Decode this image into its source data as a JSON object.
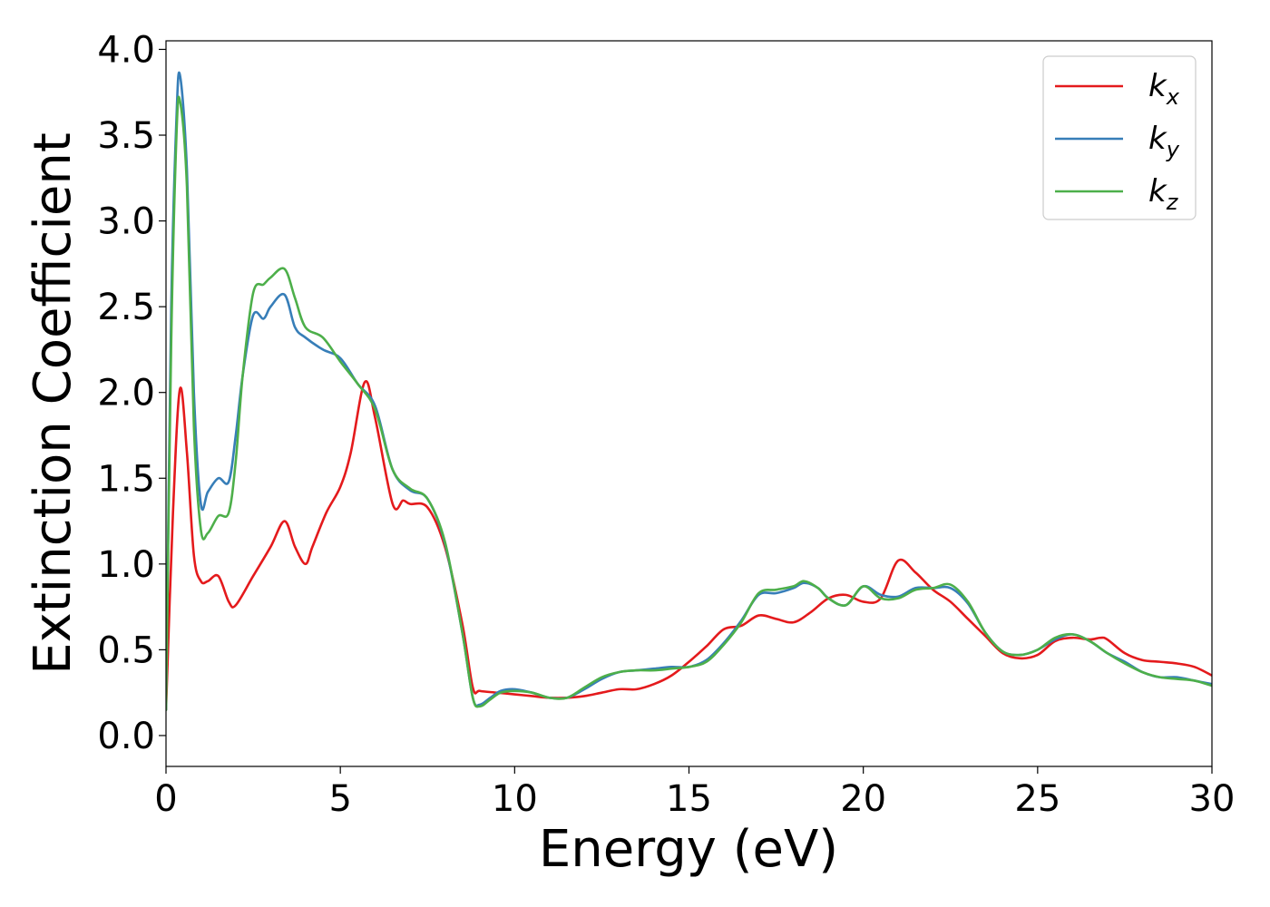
{
  "chart_data": {
    "type": "line",
    "xlabel": "Energy (eV)",
    "ylabel": "Extinction Coefficient",
    "xlim": [
      0,
      30
    ],
    "ylim": [
      -0.18,
      4.05
    ],
    "xticks": [
      0,
      5,
      10,
      15,
      20,
      25,
      30
    ],
    "xtick_labels": [
      "0",
      "5",
      "10",
      "15",
      "20",
      "25",
      "30"
    ],
    "yticks": [
      0.0,
      0.5,
      1.0,
      1.5,
      2.0,
      2.5,
      3.0,
      3.5,
      4.0
    ],
    "ytick_labels": [
      "0.0",
      "0.5",
      "1.0",
      "1.5",
      "2.0",
      "2.5",
      "3.0",
      "3.5",
      "4.0"
    ],
    "grid": false,
    "legend_position": "top-right",
    "series": [
      {
        "name": "k_x",
        "label_main": "k",
        "label_sub": "x",
        "color": "#e41a1c",
        "x": [
          0,
          0.2,
          0.4,
          0.6,
          0.8,
          1.0,
          1.2,
          1.5,
          1.8,
          2.0,
          2.5,
          3.0,
          3.4,
          3.7,
          4.0,
          4.2,
          4.6,
          5.0,
          5.3,
          5.7,
          6.0,
          6.5,
          6.8,
          7.0,
          7.5,
          8.0,
          8.5,
          8.8,
          9.0,
          9.5,
          10.0,
          10.5,
          11.0,
          11.5,
          12.0,
          12.5,
          13.0,
          13.5,
          14.0,
          14.5,
          15.0,
          15.5,
          16.0,
          16.5,
          17.0,
          17.5,
          18.0,
          18.5,
          19.0,
          19.5,
          20.0,
          20.5,
          21.0,
          21.5,
          22.0,
          22.5,
          23.0,
          23.5,
          24.0,
          24.5,
          25.0,
          25.5,
          26.0,
          26.5,
          26.8,
          27.0,
          27.5,
          28.0,
          28.5,
          29.0,
          29.5,
          30.0
        ],
        "y": [
          0.15,
          1.3,
          2.02,
          1.65,
          1.05,
          0.9,
          0.9,
          0.93,
          0.78,
          0.76,
          0.93,
          1.1,
          1.25,
          1.1,
          1.0,
          1.1,
          1.3,
          1.45,
          1.65,
          2.06,
          1.85,
          1.35,
          1.37,
          1.35,
          1.33,
          1.1,
          0.65,
          0.28,
          0.26,
          0.25,
          0.24,
          0.23,
          0.22,
          0.22,
          0.23,
          0.25,
          0.27,
          0.27,
          0.3,
          0.35,
          0.43,
          0.52,
          0.62,
          0.64,
          0.7,
          0.68,
          0.66,
          0.72,
          0.8,
          0.82,
          0.78,
          0.8,
          1.02,
          0.95,
          0.85,
          0.78,
          0.68,
          0.58,
          0.48,
          0.45,
          0.47,
          0.55,
          0.57,
          0.56,
          0.57,
          0.56,
          0.48,
          0.44,
          0.43,
          0.42,
          0.4,
          0.35
        ]
      },
      {
        "name": "k_y",
        "label_main": "k",
        "label_sub": "y",
        "color": "#377eb8",
        "x": [
          0,
          0.15,
          0.3,
          0.4,
          0.6,
          0.8,
          1.0,
          1.2,
          1.5,
          1.8,
          2.0,
          2.2,
          2.5,
          2.8,
          3.0,
          3.4,
          3.7,
          4.0,
          4.5,
          5.0,
          5.5,
          6.0,
          6.5,
          7.0,
          7.5,
          8.0,
          8.5,
          8.8,
          9.0,
          9.3,
          9.6,
          10.0,
          10.5,
          11.0,
          11.5,
          12.0,
          12.5,
          13.0,
          13.5,
          14.0,
          14.5,
          15.0,
          15.5,
          16.0,
          16.5,
          17.0,
          17.5,
          18.0,
          18.3,
          18.7,
          19.0,
          19.5,
          20.0,
          20.5,
          21.0,
          21.5,
          22.0,
          22.5,
          23.0,
          23.5,
          24.0,
          24.5,
          25.0,
          25.5,
          26.0,
          26.5,
          27.0,
          27.5,
          28.0,
          28.5,
          29.0,
          29.5,
          30.0
        ],
        "y": [
          0.15,
          2.5,
          3.6,
          3.85,
          3.3,
          2.0,
          1.35,
          1.42,
          1.5,
          1.48,
          1.75,
          2.1,
          2.45,
          2.43,
          2.5,
          2.57,
          2.38,
          2.32,
          2.25,
          2.2,
          2.05,
          1.92,
          1.55,
          1.43,
          1.38,
          1.12,
          0.6,
          0.22,
          0.18,
          0.22,
          0.26,
          0.27,
          0.25,
          0.22,
          0.22,
          0.27,
          0.33,
          0.37,
          0.38,
          0.39,
          0.4,
          0.4,
          0.44,
          0.54,
          0.67,
          0.82,
          0.83,
          0.86,
          0.89,
          0.86,
          0.8,
          0.76,
          0.87,
          0.82,
          0.81,
          0.86,
          0.86,
          0.86,
          0.77,
          0.6,
          0.49,
          0.47,
          0.5,
          0.56,
          0.59,
          0.55,
          0.48,
          0.43,
          0.37,
          0.34,
          0.34,
          0.32,
          0.3
        ]
      },
      {
        "name": "k_z",
        "label_main": "k",
        "label_sub": "z",
        "color": "#4daf4a",
        "x": [
          0,
          0.15,
          0.3,
          0.4,
          0.6,
          0.8,
          1.0,
          1.2,
          1.5,
          1.8,
          2.0,
          2.2,
          2.5,
          2.8,
          3.0,
          3.4,
          3.7,
          4.0,
          4.5,
          5.0,
          5.5,
          6.0,
          6.5,
          7.0,
          7.5,
          8.0,
          8.5,
          8.8,
          9.0,
          9.3,
          9.6,
          10.0,
          10.5,
          11.0,
          11.5,
          12.0,
          12.5,
          13.0,
          13.5,
          14.0,
          14.5,
          15.0,
          15.5,
          16.0,
          16.5,
          17.0,
          17.5,
          18.0,
          18.3,
          18.7,
          19.0,
          19.5,
          20.0,
          20.5,
          21.0,
          21.5,
          22.0,
          22.5,
          23.0,
          23.5,
          24.0,
          24.5,
          25.0,
          25.5,
          26.0,
          26.5,
          27.0,
          27.5,
          28.0,
          28.5,
          29.0,
          29.5,
          30.0
        ],
        "y": [
          0.15,
          2.3,
          3.5,
          3.7,
          3.2,
          1.8,
          1.2,
          1.18,
          1.28,
          1.3,
          1.6,
          2.1,
          2.58,
          2.63,
          2.67,
          2.72,
          2.55,
          2.38,
          2.32,
          2.18,
          2.05,
          1.9,
          1.55,
          1.44,
          1.38,
          1.13,
          0.6,
          0.22,
          0.17,
          0.21,
          0.25,
          0.26,
          0.25,
          0.22,
          0.22,
          0.28,
          0.34,
          0.37,
          0.38,
          0.38,
          0.39,
          0.4,
          0.43,
          0.53,
          0.66,
          0.83,
          0.85,
          0.87,
          0.9,
          0.86,
          0.8,
          0.76,
          0.87,
          0.8,
          0.8,
          0.85,
          0.86,
          0.88,
          0.78,
          0.6,
          0.49,
          0.47,
          0.5,
          0.57,
          0.59,
          0.55,
          0.48,
          0.42,
          0.37,
          0.34,
          0.33,
          0.32,
          0.29
        ]
      }
    ]
  }
}
